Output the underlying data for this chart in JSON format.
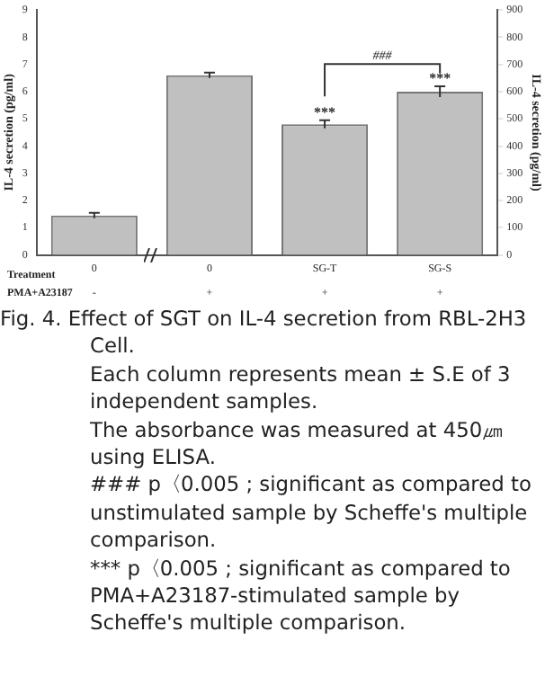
{
  "chart_data": {
    "type": "bar",
    "title": "Fig. 4. Effect of SGT on  IL-4 secretion from RBL-2H3 Cell.",
    "ylabel": "IL-4 secretion (pg/ml)",
    "y2label": "IL-4 secretion (pg/ml)",
    "categories": [
      "0",
      "0",
      "SG-T",
      "SG-S"
    ],
    "values": [
      1.45,
      6.6,
      4.8,
      6.0
    ],
    "errors": [
      0.1,
      0.1,
      0.15,
      0.2
    ],
    "color": "#c0c0c0",
    "ylim": [
      0,
      9
    ],
    "yticks": [
      0,
      1,
      2,
      3,
      4,
      5,
      6,
      7,
      8,
      9
    ],
    "y2lim": [
      0,
      900
    ],
    "y2ticks": [
      0,
      100,
      200,
      300,
      400,
      500,
      600,
      700,
      800,
      900
    ],
    "grid": false,
    "legend": false,
    "annotations": [
      "Treatment",
      "PMA+A23187",
      "-",
      "+",
      "+",
      "+",
      {
        "text": "***",
        "x": "SG-T",
        "y": 4.95
      },
      {
        "text": "***",
        "x": "SG-S",
        "y": 6.2
      },
      "###",
      "Each column represents mean ± S.E of 3 independent samples.",
      "The absorbance was measured at 450㎛ using ELISA.",
      "### p〈0.005 ; significant as compared to unstimulated sample by Scheffe's multiple comparison.",
      "*** p〈0.005 ; significant as compared to PMA+A23187-stimulated sample by Scheffe's multiple comparison."
    ]
  }
}
